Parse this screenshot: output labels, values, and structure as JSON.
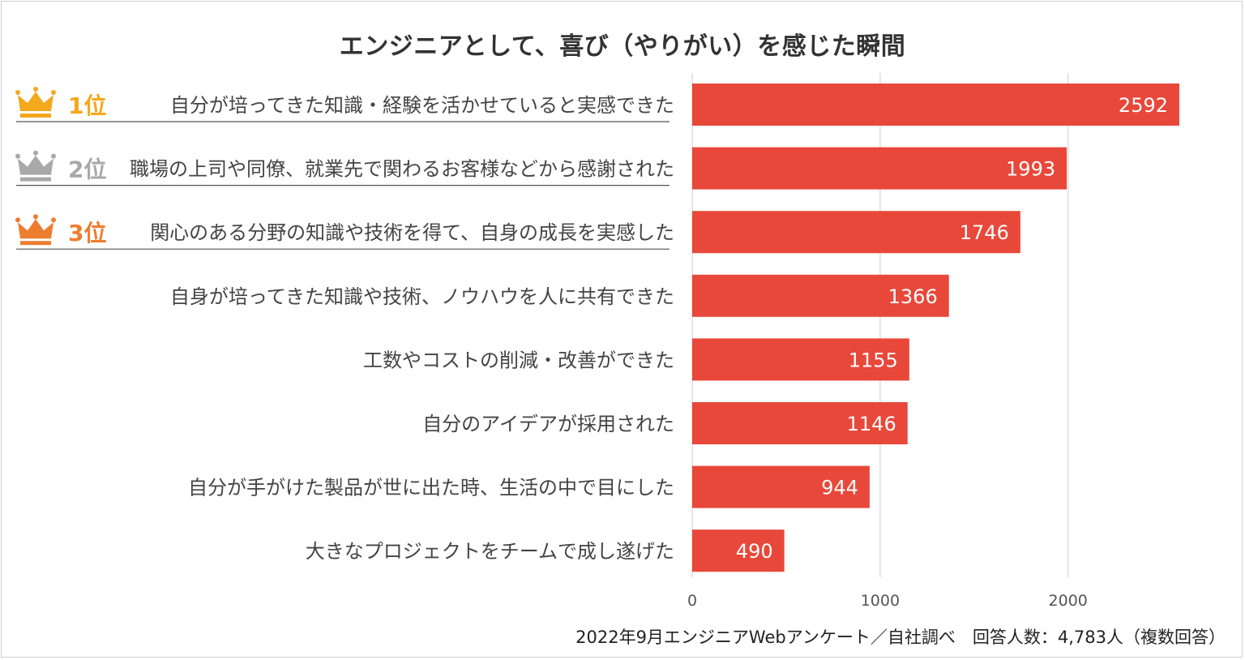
{
  "colors": {
    "bar": "#e8483a",
    "gold": "#f3a81d",
    "silver": "#a9a9a9",
    "bronze": "#ec7d2f",
    "grid": "#dddddd",
    "underline": "#555555"
  },
  "chart_data": {
    "type": "bar",
    "orientation": "horizontal",
    "title": "エンジニアとして、喜び（やりがい）を感じた瞬間",
    "categories": [
      "自分が培ってきた知識・経験を活かせていると実感できた",
      "職場の上司や同僚、就業先で関わるお客様などから感謝された",
      "関心のある分野の知識や技術を得て、自身の成長を実感した",
      "自身が培ってきた知識や技術、ノウハウを人に共有できた",
      "工数やコストの削減・改善ができた",
      "自分のアイデアが採用された",
      "自分が手がけた製品が世に出た時、生活の中で目にした",
      "大きなプロジェクトをチームで成し遂げた"
    ],
    "values": [
      2592,
      1993,
      1746,
      1366,
      1155,
      1146,
      944,
      490
    ],
    "xlim": [
      0,
      2592
    ],
    "xticks": [
      0,
      1000,
      2000
    ],
    "xlabel": "",
    "ylabel": "",
    "grid": true,
    "legend": "none",
    "ranks": [
      {
        "label": "1位",
        "crown": "gold-crown-icon",
        "color": "gold"
      },
      {
        "label": "2位",
        "crown": "silver-crown-icon",
        "color": "silver"
      },
      {
        "label": "3位",
        "crown": "bronze-crown-icon",
        "color": "bronze"
      }
    ]
  },
  "footer": {
    "note": "2022年9月エンジニアWebアンケート／自社調べ　回答人数：4,783人（複数回答）"
  }
}
